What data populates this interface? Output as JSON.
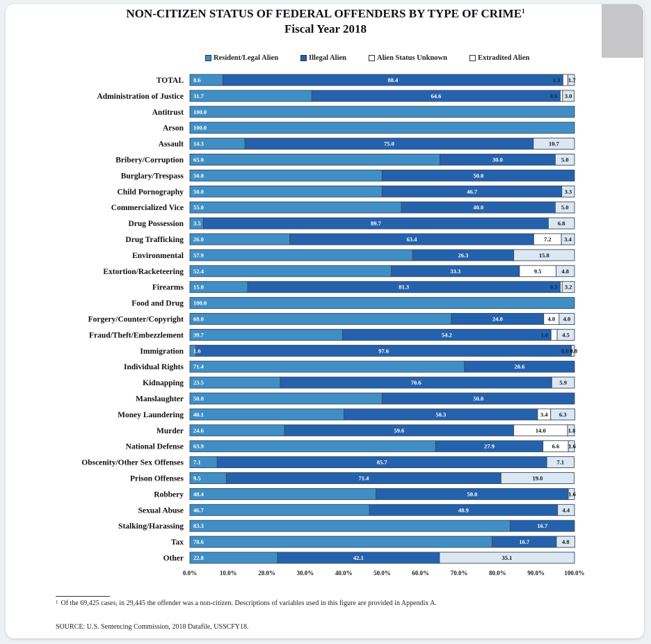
{
  "chart_data": {
    "type": "bar",
    "orientation": "horizontal",
    "stacked": true,
    "title": "NON-CITIZEN STATUS OF FEDERAL OFFENDERS BY TYPE OF CRIME",
    "title_superscript": "1",
    "subtitle": "Fiscal Year 2018",
    "xlabel": "",
    "ylabel": "",
    "xlim": [
      0,
      100
    ],
    "x_ticks": [
      "0.0%",
      "10.0%",
      "20.0%",
      "30.0%",
      "40.0%",
      "50.0%",
      "60.0%",
      "70.0%",
      "80.0%",
      "90.0%",
      "100.0%"
    ],
    "legend_position": "top",
    "grid": false,
    "categories": [
      "TOTAL",
      "Administration of Justice",
      "Antitrust",
      "Arson",
      "Assault",
      "Bribery/Corruption",
      "Burglary/Trespass",
      "Child Pornography",
      "Commercialized Vice",
      "Drug Possession",
      "Drug Trafficking",
      "Environmental",
      "Extortion/Racketeering",
      "Firearms",
      "Food and Drug",
      "Forgery/Counter/Copyright",
      "Fraud/Theft/Embezzlement",
      "Immigration",
      "Individual Rights",
      "Kidnapping",
      "Manslaughter",
      "Money Laundering",
      "Murder",
      "National Defense",
      "Obscenity/Other Sex Offenses",
      "Prison Offenses",
      "Robbery",
      "Sexual Abuse",
      "Stalking/Harassing",
      "Tax",
      "Other"
    ],
    "series": [
      {
        "name": "Resident/Legal Alien",
        "color": "#3f8fc6",
        "label_color": "#ffffff",
        "values": [
          8.6,
          31.7,
          100.0,
          100.0,
          14.3,
          65.0,
          50.0,
          50.0,
          55.0,
          3.5,
          26.0,
          57.9,
          52.4,
          15.0,
          100.0,
          68.0,
          39.7,
          1.6,
          71.4,
          23.5,
          50.0,
          40.1,
          24.6,
          63.9,
          7.1,
          9.5,
          48.4,
          46.7,
          83.3,
          78.6,
          22.8
        ]
      },
      {
        "name": "Illegal Alien",
        "color": "#2462ad",
        "label_color": "#ffffff",
        "values": [
          88.4,
          64.6,
          0,
          0,
          75.0,
          30.0,
          50.0,
          46.7,
          40.0,
          89.7,
          63.4,
          26.3,
          33.3,
          81.3,
          0,
          24.0,
          54.2,
          97.6,
          28.6,
          70.6,
          50.0,
          50.3,
          59.6,
          27.9,
          85.7,
          71.4,
          50.0,
          48.9,
          16.7,
          16.7,
          42.1
        ]
      },
      {
        "name": "Alien Status Unknown",
        "color": "#ffffff",
        "label_color": "#111111",
        "values": [
          1.3,
          0.6,
          0,
          0,
          0,
          0,
          0,
          0,
          0,
          0,
          7.2,
          0,
          9.5,
          0.5,
          0,
          4.0,
          1.6,
          0.0,
          0,
          0,
          0,
          3.4,
          14.0,
          6.6,
          0,
          0,
          0,
          0,
          0,
          0,
          0
        ]
      },
      {
        "name": "Extradited Alien",
        "color": "#dbe7f2",
        "label_color": "#111111",
        "values": [
          1.7,
          3.0,
          0,
          0,
          10.7,
          5.0,
          0,
          3.3,
          5.0,
          6.8,
          3.4,
          15.8,
          4.8,
          3.2,
          0,
          4.0,
          4.5,
          0.8,
          0,
          5.9,
          0,
          6.3,
          1.8,
          1.6,
          7.1,
          19.0,
          1.6,
          4.4,
          0,
          4.8,
          35.1
        ]
      }
    ]
  },
  "header": {
    "title": "NON-CITIZEN STATUS OF FEDERAL OFFENDERS BY TYPE OF CRIME",
    "title_superscript": "1",
    "subtitle": "Fiscal Year 2018"
  },
  "legend": {
    "items": [
      {
        "label": "Resident/Legal Alien",
        "color": "#3f8fc6"
      },
      {
        "label": "Illegal Alien",
        "color": "#2462ad"
      },
      {
        "label": "Alien Status Unknown",
        "color": "#ffffff"
      },
      {
        "label": "Extradited Alien",
        "color": "#ffffff"
      }
    ]
  },
  "footer": {
    "footnote_marker": "1",
    "footnote": "Of the 69,425 cases, in 29,445 the offender was a non-citizen.  Descriptions of variables used in this figure are provided in Appendix A.",
    "source": "SOURCE:  U.S. Sentencing Commission, 2018 Datafile, USSCFY18."
  }
}
